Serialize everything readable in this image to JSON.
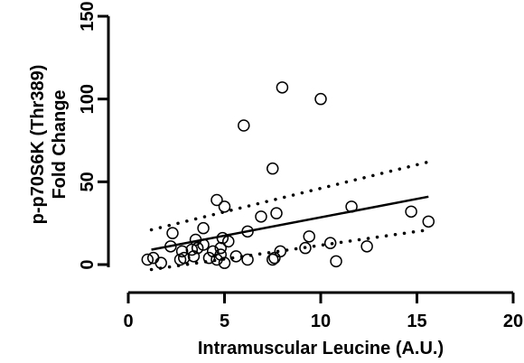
{
  "chart_data": {
    "type": "scatter",
    "xlabel": "Intramuscular Leucine (A.U.)",
    "ylabel_lines": [
      "p-p70S6K (Thr389)",
      "Fold Change"
    ],
    "xlim": [
      0,
      20
    ],
    "ylim": [
      0,
      150
    ],
    "x_ticks": [
      "0",
      "5",
      "10",
      "15",
      "20"
    ],
    "y_ticks": [
      "0",
      "50",
      "100",
      "150"
    ],
    "grid": false,
    "legend": "none",
    "points": [
      [
        1.0,
        3
      ],
      [
        1.3,
        4
      ],
      [
        1.7,
        1
      ],
      [
        2.2,
        11
      ],
      [
        2.3,
        19
      ],
      [
        2.7,
        3
      ],
      [
        2.8,
        8
      ],
      [
        2.9,
        4
      ],
      [
        3.3,
        9
      ],
      [
        3.4,
        5
      ],
      [
        3.5,
        15
      ],
      [
        3.6,
        10
      ],
      [
        3.9,
        12
      ],
      [
        3.9,
        22
      ],
      [
        4.2,
        4
      ],
      [
        4.4,
        8
      ],
      [
        4.6,
        3
      ],
      [
        4.6,
        39
      ],
      [
        4.8,
        10
      ],
      [
        4.8,
        6
      ],
      [
        4.9,
        16
      ],
      [
        5.0,
        1
      ],
      [
        5.0,
        35
      ],
      [
        5.2,
        14
      ],
      [
        5.6,
        5
      ],
      [
        6.0,
        84
      ],
      [
        6.2,
        20
      ],
      [
        6.2,
        3
      ],
      [
        6.9,
        29
      ],
      [
        7.5,
        58
      ],
      [
        7.5,
        3
      ],
      [
        7.6,
        4
      ],
      [
        7.7,
        31
      ],
      [
        7.9,
        8
      ],
      [
        8.0,
        107
      ],
      [
        9.2,
        10
      ],
      [
        9.4,
        17
      ],
      [
        10.0,
        100
      ],
      [
        10.5,
        13
      ],
      [
        10.8,
        2
      ],
      [
        11.6,
        35
      ],
      [
        12.4,
        11
      ],
      [
        14.7,
        32
      ],
      [
        15.6,
        26
      ]
    ],
    "fit_line": {
      "x": [
        1.2,
        15.6
      ],
      "y": [
        9,
        41
      ]
    },
    "ci_upper": {
      "x": [
        1.2,
        15.6
      ],
      "y": [
        21,
        62
      ]
    },
    "ci_lower": {
      "x": [
        1.2,
        15.6
      ],
      "y": [
        -3,
        21
      ]
    }
  }
}
